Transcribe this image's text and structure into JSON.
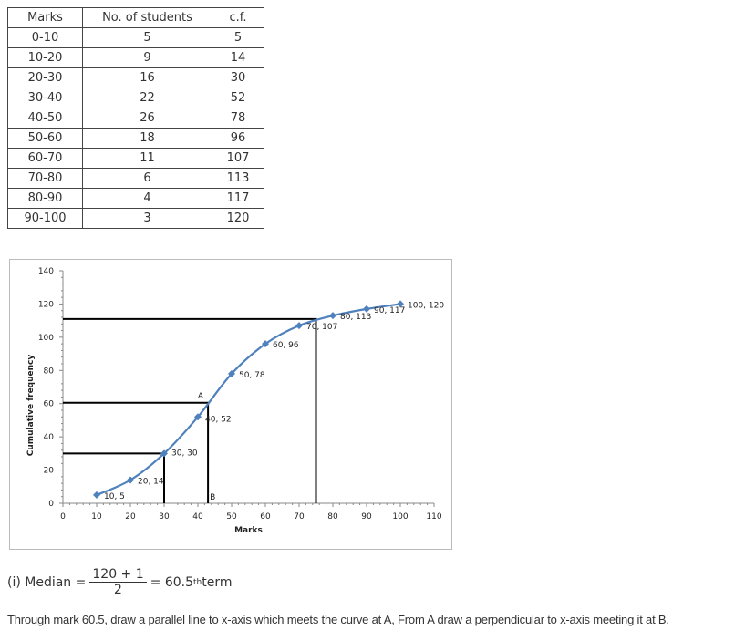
{
  "table": {
    "headers": [
      "Marks",
      "No. of students",
      "c.f."
    ],
    "rows": [
      [
        "0-10",
        "5",
        "5"
      ],
      [
        "10-20",
        "9",
        "14"
      ],
      [
        "20-30",
        "16",
        "30"
      ],
      [
        "30-40",
        "22",
        "52"
      ],
      [
        "40-50",
        "26",
        "78"
      ],
      [
        "50-60",
        "18",
        "96"
      ],
      [
        "60-70",
        "11",
        "107"
      ],
      [
        "70-80",
        "6",
        "113"
      ],
      [
        "80-90",
        "4",
        "117"
      ],
      [
        "90-100",
        "3",
        "120"
      ]
    ]
  },
  "chart_data": {
    "type": "line",
    "xlabel": "Marks",
    "ylabel": "Cumulative frequency",
    "xlim": [
      0,
      110
    ],
    "ylim": [
      0,
      140
    ],
    "xticks": [
      0,
      10,
      20,
      30,
      40,
      50,
      60,
      70,
      80,
      90,
      100,
      110
    ],
    "yticks": [
      0,
      20,
      40,
      60,
      80,
      100,
      120,
      140
    ],
    "x": [
      10,
      20,
      30,
      40,
      50,
      60,
      70,
      80,
      90,
      100
    ],
    "y": [
      5,
      14,
      30,
      52,
      78,
      96,
      107,
      113,
      117,
      120
    ],
    "point_labels": [
      "10, 5",
      "20, 14",
      "30, 30",
      "40, 52",
      "50, 78",
      "60, 96",
      "70, 107",
      "80, 113",
      "90, 117",
      "100, 120"
    ],
    "series_color": "#4F81BD",
    "reference_lines": [
      {
        "x": 30,
        "y": 30
      },
      {
        "x": 43,
        "y": 60.5
      },
      {
        "x": 75,
        "y": 111
      }
    ],
    "annotations": [
      {
        "text": "A",
        "x": 43,
        "y": 60.5
      },
      {
        "text": "B",
        "x": 43,
        "y": 0
      }
    ]
  },
  "formula": {
    "prefix": "(i) Median =",
    "numerator": "120 + 1",
    "denominator": "2",
    "result": "= 60.5",
    "sup": "th",
    "suffix": "term"
  },
  "note": "Through mark 60.5, draw a parallel line to x-axis which meets the curve at A, From A draw a perpendicular to x-axis meeting it at B."
}
